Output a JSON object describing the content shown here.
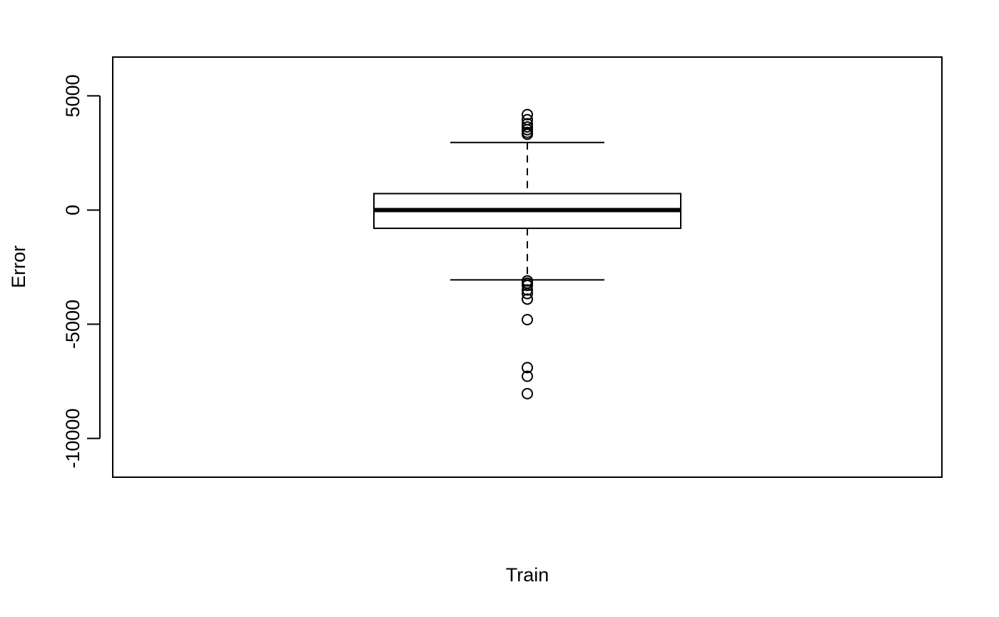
{
  "chart_data": {
    "type": "boxplot",
    "title": "",
    "xlabel": "Train",
    "ylabel": "Error",
    "ylim": [
      -11700,
      6700
    ],
    "yticks": [
      5000,
      0,
      -5000,
      -10000
    ],
    "ytick_labels": [
      "5000",
      "0",
      "-5000",
      "-10000"
    ],
    "categories": [
      "Train"
    ],
    "box": {
      "q1": -800,
      "median": 0,
      "q3": 720,
      "whisker_low": -3060,
      "whisker_high": 2960
    },
    "outliers": [
      4180,
      3960,
      3780,
      3640,
      3520,
      3400,
      3320,
      -3100,
      -3200,
      -3300,
      -3500,
      -3660,
      -3900,
      -4800,
      -6900,
      -7280,
      -8040
    ]
  }
}
